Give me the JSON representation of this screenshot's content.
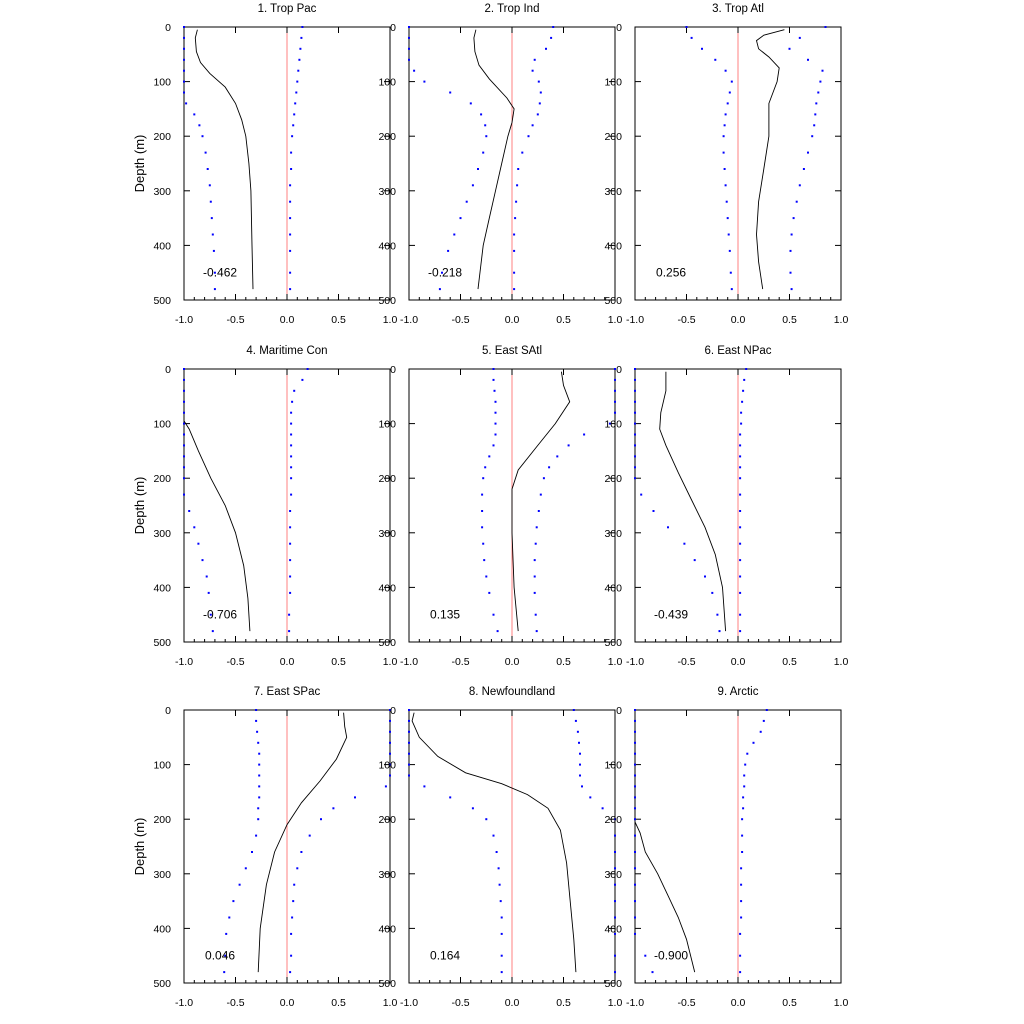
{
  "chart_data": {
    "type": "line",
    "ylabel": "Depth (m)",
    "xlim": [
      -1.0,
      1.0
    ],
    "ylim": [
      0,
      500
    ],
    "y_inverted": true,
    "xticks": [
      -1.0,
      -0.5,
      0.0,
      0.5,
      1.0
    ],
    "xtick_labels": [
      "-1.0",
      "-0.5",
      "0.0",
      "0.5",
      "1.0"
    ],
    "yticks": [
      0,
      100,
      200,
      300,
      400,
      500
    ],
    "ytick_labels": [
      "0",
      "100",
      "200",
      "300",
      "400",
      "500"
    ],
    "grid": false,
    "colors": {
      "solid_line": "#000000",
      "dotted_bounds": "#0000ff",
      "zero_line": "#ff8080"
    },
    "depths": [
      0,
      20,
      40,
      60,
      80,
      100,
      120,
      140,
      160,
      180,
      200,
      230,
      260,
      290,
      320,
      350,
      380,
      410,
      450,
      480
    ],
    "panels": [
      {
        "title": "1. Trop Pac",
        "correlation_label": "-0.462",
        "line": [
          [
            -0.87,
            5
          ],
          [
            -0.89,
            20
          ],
          [
            -0.88,
            45
          ],
          [
            -0.84,
            65
          ],
          [
            -0.75,
            85
          ],
          [
            -0.6,
            110
          ],
          [
            -0.5,
            140
          ],
          [
            -0.44,
            170
          ],
          [
            -0.4,
            200
          ],
          [
            -0.37,
            250
          ],
          [
            -0.35,
            300
          ],
          [
            -0.34,
            400
          ],
          [
            -0.33,
            480
          ]
        ],
        "lower": [
          -1.0,
          -1.0,
          -1.0,
          -1.0,
          -1.0,
          -1.0,
          -1.0,
          -0.98,
          -0.9,
          -0.85,
          -0.82,
          -0.79,
          -0.77,
          -0.75,
          -0.74,
          -0.73,
          -0.72,
          -0.71,
          -0.7,
          -0.7
        ],
        "upper": [
          0.15,
          0.14,
          0.13,
          0.12,
          0.11,
          0.1,
          0.09,
          0.08,
          0.07,
          0.06,
          0.05,
          0.04,
          0.04,
          0.03,
          0.03,
          0.03,
          0.03,
          0.03,
          0.03,
          0.03
        ]
      },
      {
        "title": "2. Trop Ind",
        "correlation_label": "-0.218",
        "line": [
          [
            -0.35,
            5
          ],
          [
            -0.37,
            20
          ],
          [
            -0.36,
            45
          ],
          [
            -0.32,
            70
          ],
          [
            -0.22,
            95
          ],
          [
            -0.05,
            130
          ],
          [
            0.02,
            150
          ],
          [
            0.0,
            175
          ],
          [
            -0.04,
            200
          ],
          [
            -0.1,
            250
          ],
          [
            -0.16,
            300
          ],
          [
            -0.22,
            350
          ],
          [
            -0.28,
            400
          ],
          [
            -0.33,
            480
          ]
        ],
        "lower": [
          -1.0,
          -1.0,
          -1.0,
          -1.0,
          -0.95,
          -0.85,
          -0.6,
          -0.4,
          -0.3,
          -0.26,
          -0.25,
          -0.28,
          -0.33,
          -0.38,
          -0.44,
          -0.5,
          -0.56,
          -0.62,
          -0.68,
          -0.7
        ],
        "upper": [
          0.4,
          0.38,
          0.33,
          0.22,
          0.2,
          0.26,
          0.28,
          0.27,
          0.25,
          0.2,
          0.16,
          0.1,
          0.06,
          0.05,
          0.04,
          0.03,
          0.02,
          0.02,
          0.02,
          0.02
        ]
      },
      {
        "title": "3. Trop Atl",
        "correlation_label": "0.256",
        "line": [
          [
            0.45,
            5
          ],
          [
            0.25,
            15
          ],
          [
            0.18,
            25
          ],
          [
            0.2,
            40
          ],
          [
            0.3,
            55
          ],
          [
            0.4,
            75
          ],
          [
            0.38,
            100
          ],
          [
            0.3,
            140
          ],
          [
            0.3,
            200
          ],
          [
            0.25,
            260
          ],
          [
            0.2,
            320
          ],
          [
            0.18,
            380
          ],
          [
            0.2,
            430
          ],
          [
            0.24,
            480
          ]
        ],
        "lower": [
          -0.5,
          -0.45,
          -0.35,
          -0.22,
          -0.12,
          -0.06,
          -0.08,
          -0.1,
          -0.12,
          -0.13,
          -0.14,
          -0.14,
          -0.13,
          -0.12,
          -0.11,
          -0.1,
          -0.09,
          -0.08,
          -0.07,
          -0.06
        ],
        "upper": [
          0.85,
          0.6,
          0.5,
          0.68,
          0.82,
          0.8,
          0.78,
          0.76,
          0.75,
          0.74,
          0.72,
          0.68,
          0.64,
          0.6,
          0.57,
          0.54,
          0.52,
          0.51,
          0.51,
          0.52
        ]
      },
      {
        "title": "4. Maritime Con",
        "correlation_label": "-0.706",
        "line": [
          [
            -1.0,
            95
          ],
          [
            -0.95,
            110
          ],
          [
            -0.86,
            150
          ],
          [
            -0.74,
            200
          ],
          [
            -0.6,
            250
          ],
          [
            -0.5,
            300
          ],
          [
            -0.42,
            360
          ],
          [
            -0.38,
            420
          ],
          [
            -0.36,
            480
          ]
        ],
        "lower": [
          -1.0,
          -1.0,
          -1.0,
          -1.0,
          -1.0,
          -1.0,
          -1.0,
          -1.0,
          -1.0,
          -1.0,
          -1.0,
          -1.0,
          -0.95,
          -0.9,
          -0.86,
          -0.82,
          -0.78,
          -0.76,
          -0.74,
          -0.72
        ],
        "upper": [
          0.2,
          0.15,
          0.07,
          0.05,
          0.04,
          0.04,
          0.04,
          0.04,
          0.04,
          0.04,
          0.04,
          0.04,
          0.03,
          0.03,
          0.03,
          0.03,
          0.03,
          0.03,
          0.02,
          0.02
        ]
      },
      {
        "title": "5. East SAtl",
        "correlation_label": "0.135",
        "line": [
          [
            0.48,
            5
          ],
          [
            0.5,
            30
          ],
          [
            0.56,
            60
          ],
          [
            0.42,
            100
          ],
          [
            0.25,
            140
          ],
          [
            0.06,
            185
          ],
          [
            0.0,
            220
          ],
          [
            0.0,
            300
          ],
          [
            0.02,
            400
          ],
          [
            0.06,
            480
          ]
        ],
        "lower": [
          -0.18,
          -0.18,
          -0.17,
          -0.16,
          -0.16,
          -0.16,
          -0.16,
          -0.18,
          -0.22,
          -0.26,
          -0.28,
          -0.29,
          -0.29,
          -0.29,
          -0.28,
          -0.27,
          -0.25,
          -0.22,
          -0.18,
          -0.14
        ],
        "upper": [
          1.0,
          1.0,
          1.0,
          1.0,
          1.0,
          0.95,
          0.7,
          0.55,
          0.44,
          0.36,
          0.31,
          0.28,
          0.26,
          0.24,
          0.23,
          0.22,
          0.22,
          0.22,
          0.23,
          0.24
        ]
      },
      {
        "title": "6. East NPac",
        "correlation_label": "-0.439",
        "line": [
          [
            -0.7,
            5
          ],
          [
            -0.7,
            40
          ],
          [
            -0.75,
            80
          ],
          [
            -0.76,
            110
          ],
          [
            -0.7,
            140
          ],
          [
            -0.58,
            190
          ],
          [
            -0.45,
            240
          ],
          [
            -0.32,
            290
          ],
          [
            -0.22,
            340
          ],
          [
            -0.15,
            400
          ],
          [
            -0.12,
            480
          ]
        ],
        "lower": [
          -1.0,
          -1.0,
          -1.0,
          -1.0,
          -1.0,
          -1.0,
          -1.0,
          -1.0,
          -1.0,
          -1.0,
          -1.0,
          -0.94,
          -0.82,
          -0.68,
          -0.52,
          -0.42,
          -0.32,
          -0.25,
          -0.2,
          -0.18
        ],
        "upper": [
          0.08,
          0.06,
          0.05,
          0.04,
          0.03,
          0.03,
          0.02,
          0.02,
          0.02,
          0.02,
          0.02,
          0.02,
          0.02,
          0.02,
          0.02,
          0.02,
          0.02,
          0.02,
          0.02,
          0.02
        ]
      },
      {
        "title": "7. East SPac",
        "correlation_label": "0.046",
        "line": [
          [
            0.55,
            5
          ],
          [
            0.56,
            30
          ],
          [
            0.58,
            50
          ],
          [
            0.48,
            90
          ],
          [
            0.32,
            130
          ],
          [
            0.14,
            170
          ],
          [
            0.0,
            210
          ],
          [
            -0.12,
            260
          ],
          [
            -0.2,
            320
          ],
          [
            -0.26,
            400
          ],
          [
            -0.28,
            480
          ]
        ],
        "lower": [
          -0.3,
          -0.3,
          -0.29,
          -0.28,
          -0.27,
          -0.27,
          -0.27,
          -0.27,
          -0.27,
          -0.28,
          -0.28,
          -0.3,
          -0.34,
          -0.4,
          -0.46,
          -0.52,
          -0.56,
          -0.59,
          -0.6,
          -0.61
        ],
        "upper": [
          1.0,
          1.0,
          1.0,
          1.0,
          1.0,
          1.0,
          1.0,
          0.96,
          0.66,
          0.45,
          0.33,
          0.22,
          0.14,
          0.1,
          0.07,
          0.06,
          0.05,
          0.04,
          0.04,
          0.03
        ]
      },
      {
        "title": "8. Newfoundland",
        "correlation_label": "0.164",
        "line": [
          [
            -0.95,
            5
          ],
          [
            -0.97,
            20
          ],
          [
            -0.9,
            50
          ],
          [
            -0.72,
            85
          ],
          [
            -0.45,
            115
          ],
          [
            -0.1,
            135
          ],
          [
            0.15,
            155
          ],
          [
            0.35,
            180
          ],
          [
            0.47,
            220
          ],
          [
            0.53,
            280
          ],
          [
            0.57,
            360
          ],
          [
            0.6,
            420
          ],
          [
            0.62,
            480
          ]
        ],
        "lower": [
          -1.0,
          -1.0,
          -1.0,
          -1.0,
          -1.0,
          -1.0,
          -1.0,
          -0.85,
          -0.6,
          -0.38,
          -0.25,
          -0.18,
          -0.15,
          -0.13,
          -0.12,
          -0.11,
          -0.1,
          -0.1,
          -0.1,
          -0.1
        ],
        "upper": [
          0.6,
          0.62,
          0.64,
          0.65,
          0.66,
          0.66,
          0.66,
          0.68,
          0.76,
          0.88,
          1.0,
          1.0,
          1.0,
          1.0,
          1.0,
          1.0,
          1.0,
          1.0,
          1.0,
          1.0
        ]
      },
      {
        "title": "9. Arctic",
        "correlation_label": "-0.900",
        "line": [
          [
            -1.0,
            205
          ],
          [
            -0.95,
            225
          ],
          [
            -0.9,
            260
          ],
          [
            -0.78,
            300
          ],
          [
            -0.68,
            340
          ],
          [
            -0.58,
            380
          ],
          [
            -0.5,
            420
          ],
          [
            -0.42,
            480
          ]
        ],
        "lower": [
          -1.0,
          -1.0,
          -1.0,
          -1.0,
          -1.0,
          -1.0,
          -1.0,
          -1.0,
          -1.0,
          -1.0,
          -1.0,
          -1.0,
          -1.0,
          -1.0,
          -1.0,
          -1.0,
          -1.0,
          -1.0,
          -0.9,
          -0.83
        ],
        "upper": [
          0.28,
          0.25,
          0.22,
          0.15,
          0.09,
          0.07,
          0.06,
          0.06,
          0.05,
          0.05,
          0.04,
          0.04,
          0.04,
          0.03,
          0.03,
          0.03,
          0.03,
          0.02,
          0.02,
          0.02
        ]
      }
    ]
  }
}
